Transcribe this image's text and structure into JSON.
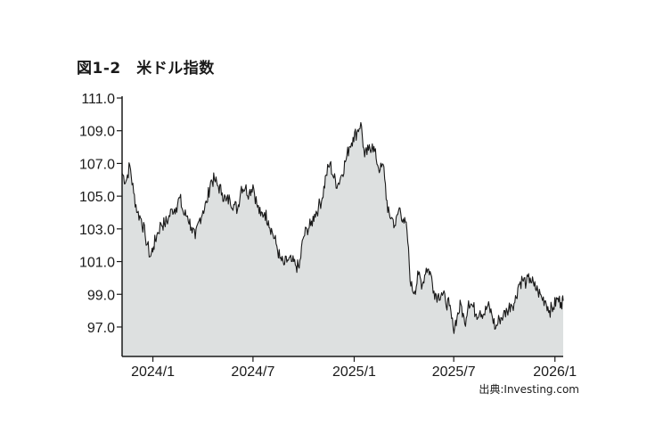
{
  "chart_data": {
    "type": "area",
    "title": "図1-2　米ドル指数",
    "xlabel": "",
    "ylabel": "",
    "source": "出典:Investing.com",
    "ylim": [
      95.2,
      111.0
    ],
    "xlim": [
      "2023-11-06",
      "2026-01-16"
    ],
    "grid": false,
    "legend": "none",
    "colors": {
      "line": "#1a1a1a",
      "fill": "#dde0e0",
      "axis": "#1a1a1a"
    },
    "yticks": [
      {
        "value": 97,
        "label": "97.0"
      },
      {
        "value": 99,
        "label": "99.0"
      },
      {
        "value": 101,
        "label": "101.0"
      },
      {
        "value": 103,
        "label": "103.0"
      },
      {
        "value": 105,
        "label": "105.0"
      },
      {
        "value": 107,
        "label": "107.0"
      },
      {
        "value": 109,
        "label": "109.0"
      },
      {
        "value": 111,
        "label": "111.0"
      }
    ],
    "xticks": [
      {
        "date": "2024-01-01",
        "label": "2024/1"
      },
      {
        "date": "2024-07-01",
        "label": "2024/7"
      },
      {
        "date": "2025-01-01",
        "label": "2025/1"
      },
      {
        "date": "2025-07-01",
        "label": "2025/7"
      },
      {
        "date": "2026-01-01",
        "label": "2026/1"
      }
    ],
    "series": [
      {
        "x": [
          "2023-11-06",
          "2023-11-13",
          "2023-11-20",
          "2023-11-27",
          "2023-12-04",
          "2023-12-11",
          "2023-12-18",
          "2023-12-27",
          "2024-01-02",
          "2024-01-08",
          "2024-01-16",
          "2024-01-22",
          "2024-01-29",
          "2024-02-05",
          "2024-02-12",
          "2024-02-19",
          "2024-02-26",
          "2024-03-04",
          "2024-03-11",
          "2024-03-18",
          "2024-03-25",
          "2024-04-01",
          "2024-04-08",
          "2024-04-15",
          "2024-04-22",
          "2024-04-29",
          "2024-05-06",
          "2024-05-13",
          "2024-05-20",
          "2024-05-27",
          "2024-06-03",
          "2024-06-10",
          "2024-06-17",
          "2024-06-24",
          "2024-07-01",
          "2024-07-08",
          "2024-07-15",
          "2024-07-22",
          "2024-07-29",
          "2024-08-05",
          "2024-08-12",
          "2024-08-19",
          "2024-08-26",
          "2024-09-02",
          "2024-09-09",
          "2024-09-16",
          "2024-09-23",
          "2024-09-30",
          "2024-10-07",
          "2024-10-14",
          "2024-10-21",
          "2024-10-28",
          "2024-11-04",
          "2024-11-11",
          "2024-11-18",
          "2024-11-25",
          "2024-12-02",
          "2024-12-09",
          "2024-12-16",
          "2024-12-23",
          "2024-12-30",
          "2025-01-06",
          "2025-01-13",
          "2025-01-20",
          "2025-01-27",
          "2025-02-03",
          "2025-02-10",
          "2025-02-17",
          "2025-02-24",
          "2025-03-03",
          "2025-03-10",
          "2025-03-17",
          "2025-03-24",
          "2025-03-31",
          "2025-04-07",
          "2025-04-14",
          "2025-04-21",
          "2025-04-28",
          "2025-05-05",
          "2025-05-12",
          "2025-05-19",
          "2025-05-26",
          "2025-06-02",
          "2025-06-09",
          "2025-06-16",
          "2025-06-23",
          "2025-06-30",
          "2025-07-07",
          "2025-07-14",
          "2025-07-21",
          "2025-07-28",
          "2025-08-04",
          "2025-08-11",
          "2025-08-18",
          "2025-08-25",
          "2025-09-01",
          "2025-09-08",
          "2025-09-15",
          "2025-09-22",
          "2025-09-29",
          "2025-10-06",
          "2025-10-13",
          "2025-10-20",
          "2025-10-27",
          "2025-11-03",
          "2025-11-10",
          "2025-11-17",
          "2025-11-24",
          "2025-12-01",
          "2025-12-08",
          "2025-12-15",
          "2025-12-22",
          "2025-12-29",
          "2026-01-05",
          "2026-01-12",
          "2026-01-16"
        ],
        "y": [
          106.4,
          105.9,
          106.9,
          105.2,
          104.0,
          103.6,
          102.6,
          101.3,
          101.9,
          102.6,
          103.3,
          103.3,
          103.6,
          104.2,
          104.3,
          104.9,
          103.9,
          103.8,
          103.1,
          102.4,
          103.5,
          104.1,
          104.6,
          105.9,
          106.0,
          105.6,
          105.2,
          104.7,
          104.8,
          104.5,
          104.2,
          105.6,
          105.5,
          105.2,
          105.7,
          104.5,
          103.8,
          104.0,
          103.5,
          102.8,
          102.1,
          101.2,
          100.8,
          101.1,
          101.0,
          100.8,
          100.6,
          102.4,
          103.0,
          103.2,
          103.9,
          104.3,
          104.9,
          106.3,
          107.0,
          106.1,
          105.7,
          106.3,
          107.1,
          108.0,
          108.6,
          108.9,
          109.5,
          107.4,
          107.8,
          108.2,
          107.3,
          106.6,
          106.8,
          104.0,
          103.7,
          103.2,
          104.3,
          103.6,
          102.9,
          99.5,
          99.2,
          100.2,
          99.6,
          100.6,
          100.4,
          99.2,
          98.9,
          99.1,
          98.6,
          98.3,
          96.9,
          97.6,
          98.4,
          97.2,
          98.6,
          98.3,
          97.8,
          98.0,
          97.8,
          98.3,
          97.8,
          96.9,
          97.5,
          97.7,
          98.0,
          98.4,
          98.5,
          99.6,
          99.9,
          99.7,
          100.0,
          99.5,
          99.2,
          98.8,
          98.6,
          98.0,
          98.2,
          98.7,
          98.5,
          98.6
        ]
      }
    ]
  }
}
